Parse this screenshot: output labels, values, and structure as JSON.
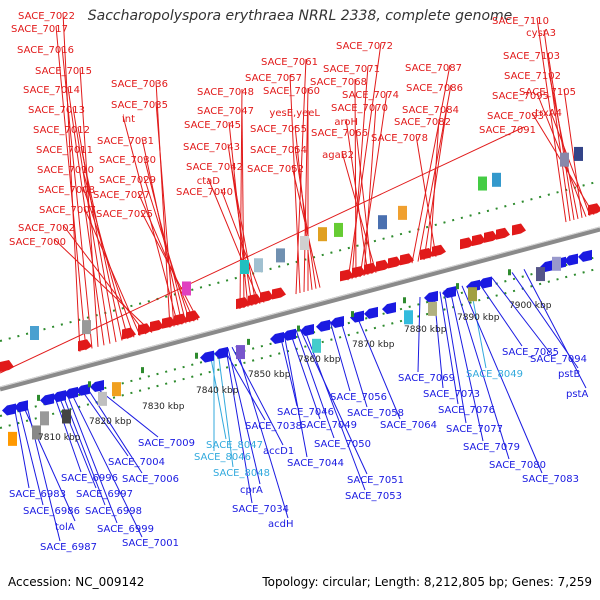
{
  "title": "Saccharopolyspora erythraea NRRL 2338, complete genome",
  "footer": {
    "accession": "Accession: NC_009142",
    "stats": "Topology: circular; Length: 8,212,805 bp; Genes: 7,259"
  },
  "colors": {
    "forward": "#e11a1a",
    "reverse": "#1a1ae1",
    "highlight": "#33aadd",
    "axis": "#888888",
    "tick": "#2e8b2e"
  },
  "axis_ticks": [
    "7810 kbp",
    "7820 kbp",
    "7830 kbp",
    "7840 kbp",
    "7850 kbp",
    "7860 kbp",
    "7870 kbp",
    "7880 kbp",
    "7890 kbp",
    "7900 kbp"
  ],
  "top_labels": [
    {
      "text": "SACE_7022"
    },
    {
      "text": "SACE_7017"
    },
    {
      "text": "SACE_7016"
    },
    {
      "text": "SACE_7015"
    },
    {
      "text": "SACE_7014"
    },
    {
      "text": "SACE_7013"
    },
    {
      "text": "SACE_7012"
    },
    {
      "text": "SACE_7011"
    },
    {
      "text": "SACE_7010"
    },
    {
      "text": "SACE_7008"
    },
    {
      "text": "SACE_7007"
    },
    {
      "text": "SACE_7002"
    },
    {
      "text": "SACE_7000"
    },
    {
      "text": "SACE_7036"
    },
    {
      "text": "SACE_7035"
    },
    {
      "text": "int"
    },
    {
      "text": "SACE_7031"
    },
    {
      "text": "SACE_7030"
    },
    {
      "text": "SACE_7029"
    },
    {
      "text": "SACE_7027"
    },
    {
      "text": "SACE_7025"
    },
    {
      "text": "SACE_7048"
    },
    {
      "text": "SACE_7047"
    },
    {
      "text": "SACE_7045"
    },
    {
      "text": "SACE_7043"
    },
    {
      "text": "SACE_7042"
    },
    {
      "text": "ctaD"
    },
    {
      "text": "SACE_7040"
    },
    {
      "text": "SACE_7061"
    },
    {
      "text": "SACE_7057"
    },
    {
      "text": "SACE_7060"
    },
    {
      "text": "yesE,yeeL"
    },
    {
      "text": "SACE_7055"
    },
    {
      "text": "SACE_7054"
    },
    {
      "text": "SACE_7052"
    },
    {
      "text": "SACE_7072"
    },
    {
      "text": "SACE_7071"
    },
    {
      "text": "SACE_7068"
    },
    {
      "text": "SACE_7074"
    },
    {
      "text": "SACE_7070"
    },
    {
      "text": "aroH"
    },
    {
      "text": "SACE_7066"
    },
    {
      "text": "agaB2"
    },
    {
      "text": "SACE_7087"
    },
    {
      "text": "SACE_7086"
    },
    {
      "text": "SACE_7084"
    },
    {
      "text": "SACE_7082"
    },
    {
      "text": "SACE_7078"
    },
    {
      "text": "SACE_7110"
    },
    {
      "text": "cysA3"
    },
    {
      "text": "SACE_7103"
    },
    {
      "text": "SACE_7102"
    },
    {
      "text": "SACE_7105"
    },
    {
      "text": "SACE_7095"
    },
    {
      "text": "trxA4"
    },
    {
      "text": "SACE_7093"
    },
    {
      "text": "SACE_7091"
    }
  ],
  "bottom_labels": [
    {
      "text": "SACE_6983",
      "color": "reverse"
    },
    {
      "text": "SACE_6986",
      "color": "reverse"
    },
    {
      "text": "tolA",
      "color": "reverse"
    },
    {
      "text": "SACE_6987",
      "color": "reverse"
    },
    {
      "text": "SACE_6996",
      "color": "reverse"
    },
    {
      "text": "SACE_6997",
      "color": "reverse"
    },
    {
      "text": "SACE_6998",
      "color": "reverse"
    },
    {
      "text": "SACE_6999",
      "color": "reverse"
    },
    {
      "text": "SACE_7001",
      "color": "reverse"
    },
    {
      "text": "SACE_7004",
      "color": "reverse"
    },
    {
      "text": "SACE_7006",
      "color": "reverse"
    },
    {
      "text": "SACE_7009",
      "color": "reverse"
    },
    {
      "text": "SACE_8047",
      "color": "highlight"
    },
    {
      "text": "SACE_8046",
      "color": "highlight"
    },
    {
      "text": "SACE_8048",
      "color": "highlight"
    },
    {
      "text": "SACE_7038",
      "color": "reverse"
    },
    {
      "text": "accD1",
      "color": "reverse"
    },
    {
      "text": "cprA",
      "color": "reverse"
    },
    {
      "text": "SACE_7034",
      "color": "reverse"
    },
    {
      "text": "acdH",
      "color": "reverse"
    },
    {
      "text": "SACE_7046",
      "color": "reverse"
    },
    {
      "text": "SACE_7044",
      "color": "reverse"
    },
    {
      "text": "SACE_7049",
      "color": "reverse"
    },
    {
      "text": "SACE_7050",
      "color": "reverse"
    },
    {
      "text": "SACE_7051",
      "color": "reverse"
    },
    {
      "text": "SACE_7053",
      "color": "reverse"
    },
    {
      "text": "SACE_7056",
      "color": "reverse"
    },
    {
      "text": "SACE_7058",
      "color": "reverse"
    },
    {
      "text": "SACE_7064",
      "color": "reverse"
    },
    {
      "text": "SACE_7069",
      "color": "reverse"
    },
    {
      "text": "SACE_8049",
      "color": "highlight"
    },
    {
      "text": "SACE_7073",
      "color": "reverse"
    },
    {
      "text": "SACE_7076",
      "color": "reverse"
    },
    {
      "text": "SACE_7077",
      "color": "reverse"
    },
    {
      "text": "SACE_7079",
      "color": "reverse"
    },
    {
      "text": "SACE_7080",
      "color": "reverse"
    },
    {
      "text": "SACE_7083",
      "color": "reverse"
    },
    {
      "text": "SACE_7085",
      "color": "reverse"
    },
    {
      "text": "SACE_7094",
      "color": "reverse"
    },
    {
      "text": "pstB",
      "color": "reverse"
    },
    {
      "text": "pstA",
      "color": "reverse"
    }
  ]
}
